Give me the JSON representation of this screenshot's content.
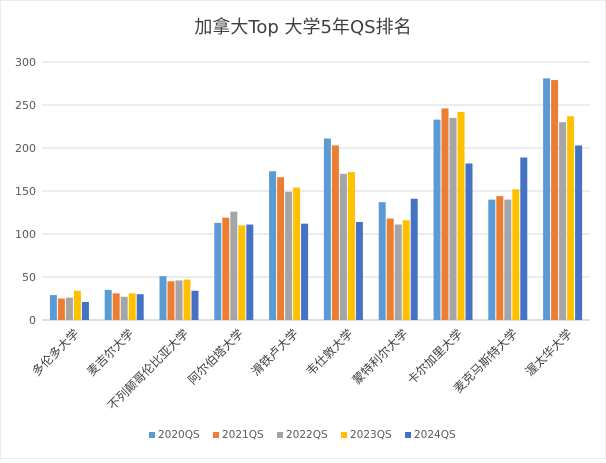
{
  "chart_data": {
    "type": "bar",
    "title": "加拿大Top 大学5年QS排名",
    "categories": [
      "多伦多大学",
      "麦吉尔大学",
      "不列颠哥伦比亚大学",
      "阿尔伯塔大学",
      "滑铁卢大学",
      "韦仕敦大学",
      "蒙特利尔大学",
      "卡尔加里大学",
      "麦克马斯特大学",
      "渥太华大学"
    ],
    "series": [
      {
        "name": "2020QS",
        "color": "#5b9bd5",
        "values": [
          29,
          35,
          51,
          113,
          173,
          211,
          137,
          233,
          140,
          281
        ]
      },
      {
        "name": "2021QS",
        "color": "#ed7d31",
        "values": [
          25,
          31,
          45,
          119,
          166,
          203,
          118,
          246,
          144,
          279
        ]
      },
      {
        "name": "2022QS",
        "color": "#a5a5a5",
        "values": [
          26,
          27,
          46,
          126,
          149,
          170,
          111,
          235,
          140,
          230
        ]
      },
      {
        "name": "2023QS",
        "color": "#ffc000",
        "values": [
          34,
          31,
          47,
          110,
          154,
          172,
          116,
          242,
          152,
          237
        ]
      },
      {
        "name": "2024QS",
        "color": "#4472c4",
        "values": [
          21,
          30,
          34,
          111,
          112,
          114,
          141,
          182,
          189,
          203
        ]
      }
    ],
    "y_ticks": [
      "0",
      "50",
      "100",
      "150",
      "200",
      "250",
      "300"
    ],
    "ylim": [
      0,
      300
    ],
    "grid": true,
    "legend_position": "bottom"
  }
}
